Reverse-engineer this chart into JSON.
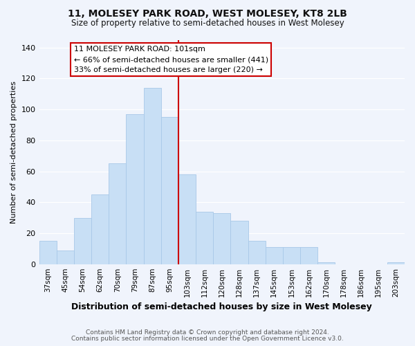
{
  "title1": "11, MOLESEY PARK ROAD, WEST MOLESEY, KT8 2LB",
  "title2": "Size of property relative to semi-detached houses in West Molesey",
  "xlabel": "Distribution of semi-detached houses by size in West Molesey",
  "ylabel": "Number of semi-detached properties",
  "bar_labels": [
    "37sqm",
    "45sqm",
    "54sqm",
    "62sqm",
    "70sqm",
    "79sqm",
    "87sqm",
    "95sqm",
    "103sqm",
    "112sqm",
    "120sqm",
    "128sqm",
    "137sqm",
    "145sqm",
    "153sqm",
    "162sqm",
    "170sqm",
    "178sqm",
    "186sqm",
    "195sqm",
    "203sqm"
  ],
  "bar_heights": [
    15,
    9,
    30,
    45,
    65,
    97,
    114,
    95,
    58,
    34,
    33,
    28,
    15,
    11,
    11,
    11,
    1,
    0,
    0,
    0,
    1
  ],
  "bar_color": "#c8dff5",
  "bar_edgecolor": "#a8c8e8",
  "vline_color": "#cc0000",
  "annotation_title": "11 MOLESEY PARK ROAD: 101sqm",
  "annotation_line1": "← 66% of semi-detached houses are smaller (441)",
  "annotation_line2": "33% of semi-detached houses are larger (220) →",
  "annotation_box_facecolor": "#ffffff",
  "annotation_box_edgecolor": "#cc0000",
  "ylim": [
    0,
    145
  ],
  "yticks": [
    0,
    20,
    40,
    60,
    80,
    100,
    120,
    140
  ],
  "footer1": "Contains HM Land Registry data © Crown copyright and database right 2024.",
  "footer2": "Contains public sector information licensed under the Open Government Licence v3.0.",
  "bg_color": "#f0f4fc"
}
